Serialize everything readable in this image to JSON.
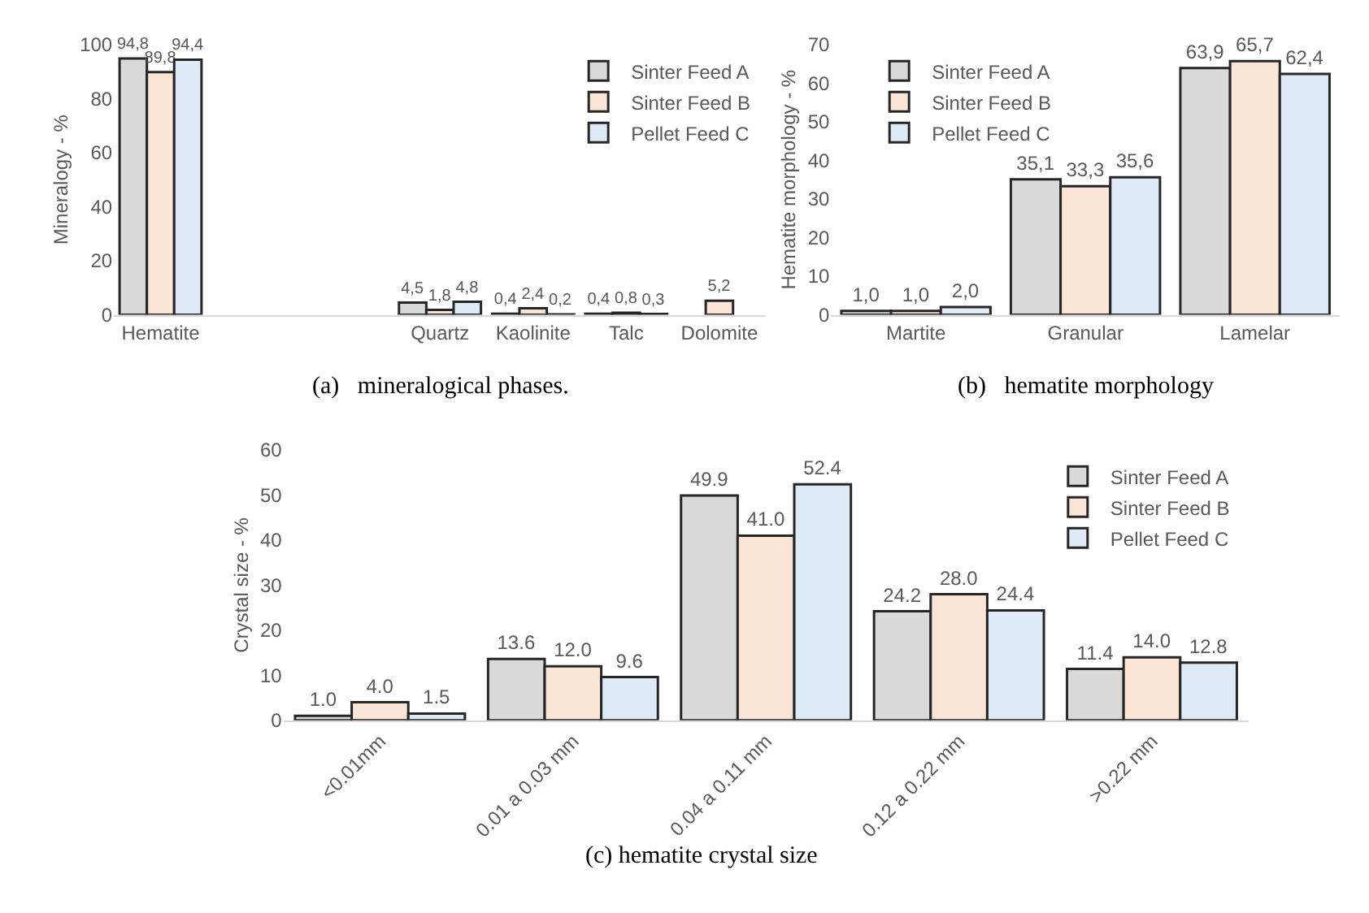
{
  "chart_data": [
    {
      "type": "bar",
      "categories": [
        "Hematite",
        null,
        null,
        "Quartz",
        "Kaolinite",
        "Talc",
        "Dolomite"
      ],
      "ylabel": "Mineralogy - %",
      "ylim": [
        0,
        100
      ],
      "yticks": [
        0,
        20,
        40,
        60,
        80,
        100
      ],
      "grid": false,
      "legend": "top right",
      "annotations": [
        "(a)   mineralogical phases."
      ],
      "series": [
        {
          "name": "Sinter Feed A",
          "color": "#d9d9d9",
          "values": [
            94.8,
            null,
            null,
            4.5,
            0.4,
            0.4,
            null
          ],
          "value_labels": [
            "94,8",
            null,
            null,
            "4,5",
            "0,4",
            "0,4",
            null
          ]
        },
        {
          "name": "Sinter Feed B",
          "color": "#fbe5d6",
          "values": [
            89.8,
            null,
            null,
            1.8,
            2.4,
            0.8,
            5.2
          ],
          "value_labels": [
            "89,8",
            null,
            null,
            "1,8",
            "2,4",
            "0,8",
            "5,2"
          ]
        },
        {
          "name": "Pellet Feed C",
          "color": "#deebf7",
          "values": [
            94.4,
            null,
            null,
            4.8,
            0.2,
            0.3,
            null
          ],
          "value_labels": [
            "94,4",
            null,
            null,
            "4,8",
            "0,2",
            "0,3",
            null
          ]
        }
      ]
    },
    {
      "type": "bar",
      "categories": [
        "Martite",
        "Granular",
        "Lamelar"
      ],
      "ylabel": "Hematite morphology - %",
      "ylim": [
        0,
        70
      ],
      "yticks": [
        0,
        10,
        20,
        30,
        40,
        50,
        60,
        70
      ],
      "grid": false,
      "legend": "top left",
      "annotations": [
        "(b)   hematite morphology"
      ],
      "series": [
        {
          "name": "Sinter Feed A",
          "color": "#d9d9d9",
          "values": [
            1.0,
            35.1,
            63.9
          ],
          "value_labels": [
            "1,0",
            "35,1",
            "63,9"
          ]
        },
        {
          "name": "Sinter Feed B",
          "color": "#fbe5d6",
          "values": [
            1.0,
            33.3,
            65.7
          ],
          "value_labels": [
            "1,0",
            "33,3",
            "65,7"
          ]
        },
        {
          "name": "Pellet Feed C",
          "color": "#deebf7",
          "values": [
            2.0,
            35.6,
            62.4
          ],
          "value_labels": [
            "2,0",
            "35,6",
            "62,4"
          ]
        }
      ]
    },
    {
      "type": "bar",
      "categories": [
        "<0.01mm",
        "0.01 a 0.03 mm",
        "0.04 a 0.11 mm",
        "0.12 a 0.22 mm",
        ">0.22 mm"
      ],
      "ylabel": "Crystal size - %",
      "ylim": [
        0,
        60
      ],
      "yticks": [
        0,
        10,
        20,
        30,
        40,
        50,
        60
      ],
      "grid": false,
      "legend": "top right",
      "annotations": [
        "(c) hematite crystal size"
      ],
      "series": [
        {
          "name": "Sinter Feed A",
          "color": "#d9d9d9",
          "values": [
            1.0,
            13.6,
            49.9,
            24.2,
            11.4
          ],
          "value_labels": [
            "1.0",
            "13.6",
            "49.9",
            "24.2",
            "11.4"
          ]
        },
        {
          "name": "Sinter Feed B",
          "color": "#fbe5d6",
          "values": [
            4.0,
            12.0,
            41.0,
            28.0,
            14.0
          ],
          "value_labels": [
            "4.0",
            "12.0",
            "41.0",
            "28.0",
            "14.0"
          ]
        },
        {
          "name": "Pellet Feed C",
          "color": "#deebf7",
          "values": [
            1.5,
            9.6,
            52.4,
            24.4,
            12.8
          ],
          "value_labels": [
            "1.5",
            "9.6",
            "52.4",
            "24.4",
            "12.8"
          ]
        }
      ]
    }
  ]
}
